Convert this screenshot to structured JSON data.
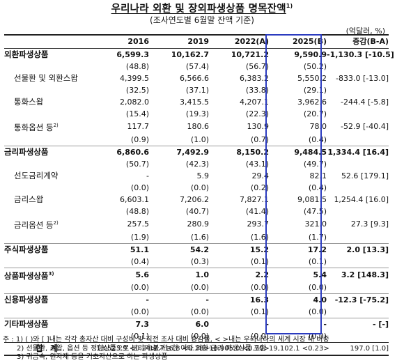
{
  "title": "우리나라 외환 및 장외파생상품 명목잔액",
  "title_note": "1)",
  "subtitle": "(조사연도별 6월말 잔액 기준)",
  "unit": "(억달러, %)",
  "headers": [
    "",
    "2016",
    "2019",
    "2022(A)",
    "2025(B)",
    "증감(B-A)"
  ],
  "rows": [
    {
      "label": "외환파생상품",
      "note": "",
      "level": "main",
      "group_start": true,
      "values": [
        "6,599.3",
        "10,162.7",
        "10,721.2",
        "9,590.9"
      ],
      "diff": "-1,130.3 [-10.5]",
      "shares": [
        "(48.8)",
        "(57.4)",
        "(56.7)",
        "(50.2)"
      ]
    },
    {
      "label": "선물환 및 외환스왑",
      "note": "",
      "level": "sub",
      "group_start": false,
      "values": [
        "4,399.5",
        "6,566.6",
        "6,383.2",
        "5,550.2"
      ],
      "diff": "-833.0 [-13.0]",
      "shares": [
        "(32.5)",
        "(37.1)",
        "(33.8)",
        "(29.1)"
      ]
    },
    {
      "label": "통화스왑",
      "note": "",
      "level": "sub",
      "group_start": false,
      "values": [
        "2,082.0",
        "3,415.5",
        "4,207.1",
        "3,962.6"
      ],
      "diff": "-244.4 [-5.8]",
      "shares": [
        "(15.4)",
        "(19.3)",
        "(22.3)",
        "(20.7)"
      ]
    },
    {
      "label": "통화옵션 등",
      "note": "2)",
      "level": "sub",
      "group_start": false,
      "values": [
        "117.7",
        "180.6",
        "130.9",
        "78.0"
      ],
      "diff": "-52.9 [-40.4]",
      "shares": [
        "(0.9)",
        "(1.0)",
        "(0.7)",
        "(0.4)"
      ]
    },
    {
      "label": "금리파생상품",
      "note": "",
      "level": "main",
      "group_start": true,
      "values": [
        "6,860.6",
        "7,492.9",
        "8,150.2",
        "9,484.5"
      ],
      "diff": "1,334.4 [16.4]",
      "shares": [
        "(50.7)",
        "(42.3)",
        "(43.1)",
        "(49.7)"
      ]
    },
    {
      "label": "선도금리계약",
      "note": "",
      "level": "sub",
      "group_start": false,
      "values": [
        "-",
        "5.9",
        "29.4",
        "82.1"
      ],
      "diff": "52.6 [179.1]",
      "shares": [
        "(0.0)",
        "(0.0)",
        "(0.2)",
        "(0.4)"
      ]
    },
    {
      "label": "금리스왑",
      "note": "",
      "level": "sub",
      "group_start": false,
      "values": [
        "6,603.1",
        "7,206.2",
        "7,827.1",
        "9,081.5"
      ],
      "diff": "1,254.4 [16.0]",
      "shares": [
        "(48.8)",
        "(40.7)",
        "(41.4)",
        "(47.5)"
      ]
    },
    {
      "label": "금리옵션 등",
      "note": "2)",
      "level": "sub",
      "group_start": false,
      "values": [
        "257.5",
        "280.9",
        "293.7",
        "321.0"
      ],
      "diff": "27.3 [9.3]",
      "shares": [
        "(1.9)",
        "(1.6)",
        "(1.6)",
        "(1.7)"
      ]
    },
    {
      "label": "주식파생상품",
      "note": "",
      "level": "main",
      "group_start": true,
      "values": [
        "51.1",
        "54.2",
        "15.2",
        "17.2"
      ],
      "diff": "2.0 [13.3]",
      "shares": [
        "(0.4)",
        "(0.3)",
        "(0.1)",
        "(0.1)"
      ]
    },
    {
      "label": "상품파생상품",
      "note": "3)",
      "level": "main",
      "group_start": true,
      "values": [
        "5.6",
        "1.0",
        "2.2",
        "5.4"
      ],
      "diff": "3.2 [148.3]",
      "shares": [
        "(0.0)",
        "(0.0)",
        "(0.0)",
        "(0.0)"
      ]
    },
    {
      "label": "신용파생상품",
      "note": "",
      "level": "main",
      "group_start": true,
      "values": [
        "-",
        "-",
        "16.3",
        "4.0"
      ],
      "diff": "-12.3 [-75.2]",
      "shares": [
        "(0.0)",
        "(0.0)",
        "(0.1)",
        "(0.0)"
      ]
    },
    {
      "label": "기타파생상품",
      "note": "",
      "level": "main",
      "group_start": true,
      "values": [
        "7.3",
        "6.0",
        "-",
        "-"
      ],
      "diff": "- [-]",
      "shares": [
        "(0.1)",
        "(0.0)",
        "(0.0)",
        "(0.0)"
      ]
    }
  ],
  "total": {
    "label": "합계",
    "values": [
      "13,523.9 <0.24>",
      "17,716.8 <0.28>",
      "18,905.0 <0.30>",
      "19,102.1 <0.23>"
    ],
    "diff": "197.0 [1.0]"
  },
  "notes": [
    "주 : 1) (  )와 [  ]내는 각각 총자산 대비 구성비 및 직전 조사 대비 증감률, < >내는 우리나라의 세계 시장 내 비중",
    "2) 선물환, 스왑, 옵션 등 정형상품으로 분리가 불가능한 여타 외환·금리 파생상품 포함",
    "3) 귀금속, 원자재 등을 기초자산으로 하는 파생상품"
  ],
  "colors": {
    "highlight": "#2b3bbf"
  }
}
